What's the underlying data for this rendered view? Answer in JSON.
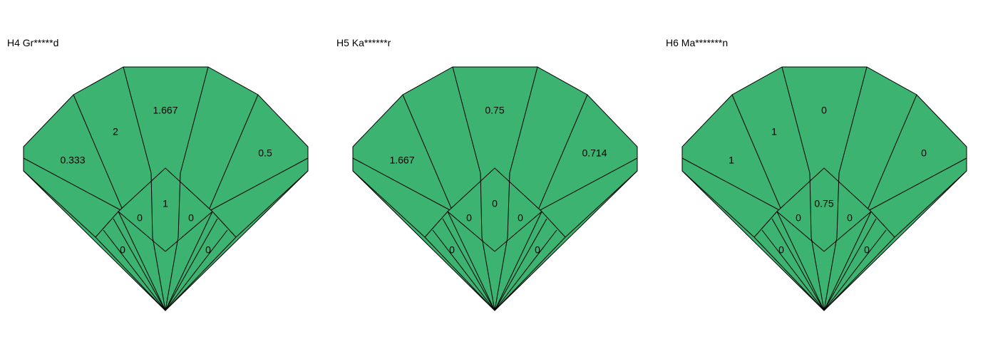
{
  "panels": [
    {
      "title": "H4 Gr*****d",
      "values": {
        "crown_far_left": "0.333",
        "crown_left": "2",
        "crown_center": "1.667",
        "crown_right": "0.5",
        "table_left": "0",
        "table_center": "1",
        "table_right": "0",
        "pavilion_left": "0",
        "pavilion_right": "0"
      }
    },
    {
      "title": "H5 Ka******r",
      "values": {
        "crown_far_left": "1.667",
        "crown_left": "",
        "crown_center": "0.75",
        "crown_right": "0.714",
        "table_left": "0",
        "table_center": "0",
        "table_right": "0",
        "pavilion_left": "0",
        "pavilion_right": "0"
      }
    },
    {
      "title": "H6 Ma*******n",
      "values": {
        "crown_far_left": "1",
        "crown_left": "1",
        "crown_center": "0",
        "crown_right": "0",
        "table_left": "0",
        "table_center": "0.75",
        "table_right": "0",
        "pavilion_left": "0",
        "pavilion_right": "0"
      }
    }
  ],
  "fill_color": "#3cb371",
  "stroke_color": "#000000"
}
